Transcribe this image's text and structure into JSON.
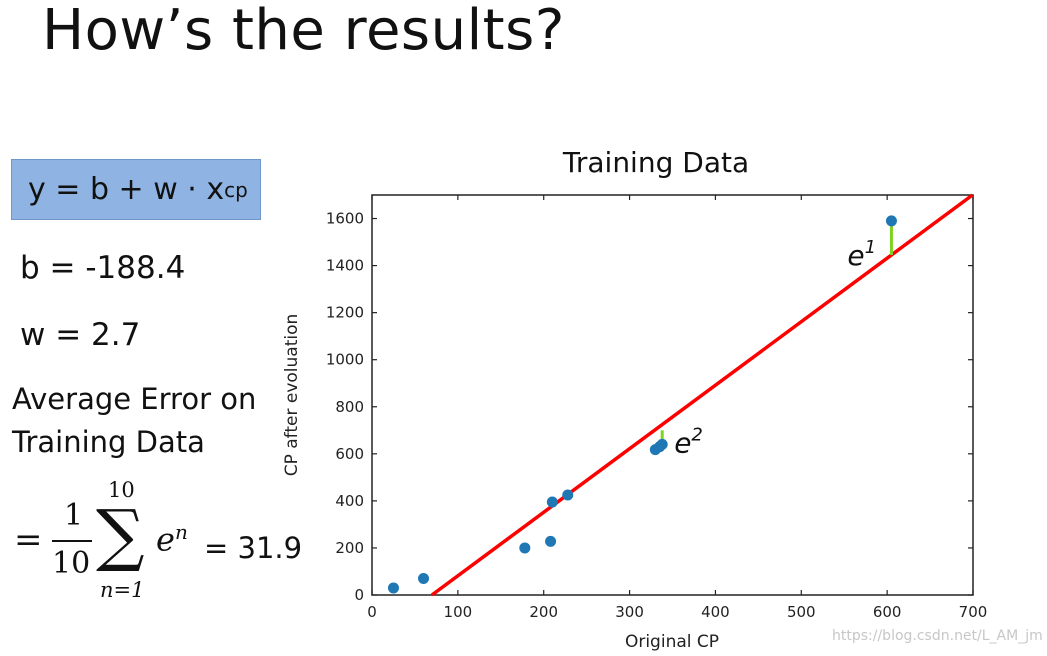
{
  "slide": {
    "title": "How’s the results?",
    "model": {
      "prefix": "y = b + w · x",
      "subscript": "cp"
    },
    "b_text": "b = -188.4",
    "w_text": "w = 2.7",
    "error_label": "Average Error on Training Data",
    "sum": {
      "numerator": "1",
      "denominator": "10",
      "upper": "10",
      "lower": "n=1",
      "term": "e",
      "term_sup": "n",
      "result": "= 31.9"
    },
    "watermark": "https://blog.csdn.net/L_AM_jm"
  },
  "colors": {
    "points": "#1f77b4",
    "regression_line": "#ff0000",
    "error_bars": "#7ed321",
    "formula_box": "#8fb4e3"
  },
  "chart_data": {
    "type": "scatter",
    "title": "Training Data",
    "xlabel": "Original CP",
    "ylabel": "CP after evoluation",
    "xlim": [
      0,
      700
    ],
    "ylim": [
      0,
      1700
    ],
    "xticks": [
      0,
      100,
      200,
      300,
      400,
      500,
      600,
      700
    ],
    "yticks": [
      0,
      200,
      400,
      600,
      800,
      1000,
      1200,
      1400,
      1600
    ],
    "points": [
      {
        "x": 25,
        "y": 30
      },
      {
        "x": 60,
        "y": 70
      },
      {
        "x": 178,
        "y": 200
      },
      {
        "x": 208,
        "y": 228
      },
      {
        "x": 210,
        "y": 395
      },
      {
        "x": 228,
        "y": 425
      },
      {
        "x": 330,
        "y": 618
      },
      {
        "x": 335,
        "y": 630
      },
      {
        "x": 338,
        "y": 640
      },
      {
        "x": 605,
        "y": 1590
      }
    ],
    "line": {
      "b": -188.4,
      "w": 2.7
    },
    "annotations": [
      {
        "label": "e",
        "sup": "1",
        "x": 605,
        "y_from": 1590,
        "y_to": 1445
      },
      {
        "label": "e",
        "sup": "2",
        "x": 338,
        "y_from": 640,
        "y_to": 700
      }
    ],
    "grid": false
  }
}
